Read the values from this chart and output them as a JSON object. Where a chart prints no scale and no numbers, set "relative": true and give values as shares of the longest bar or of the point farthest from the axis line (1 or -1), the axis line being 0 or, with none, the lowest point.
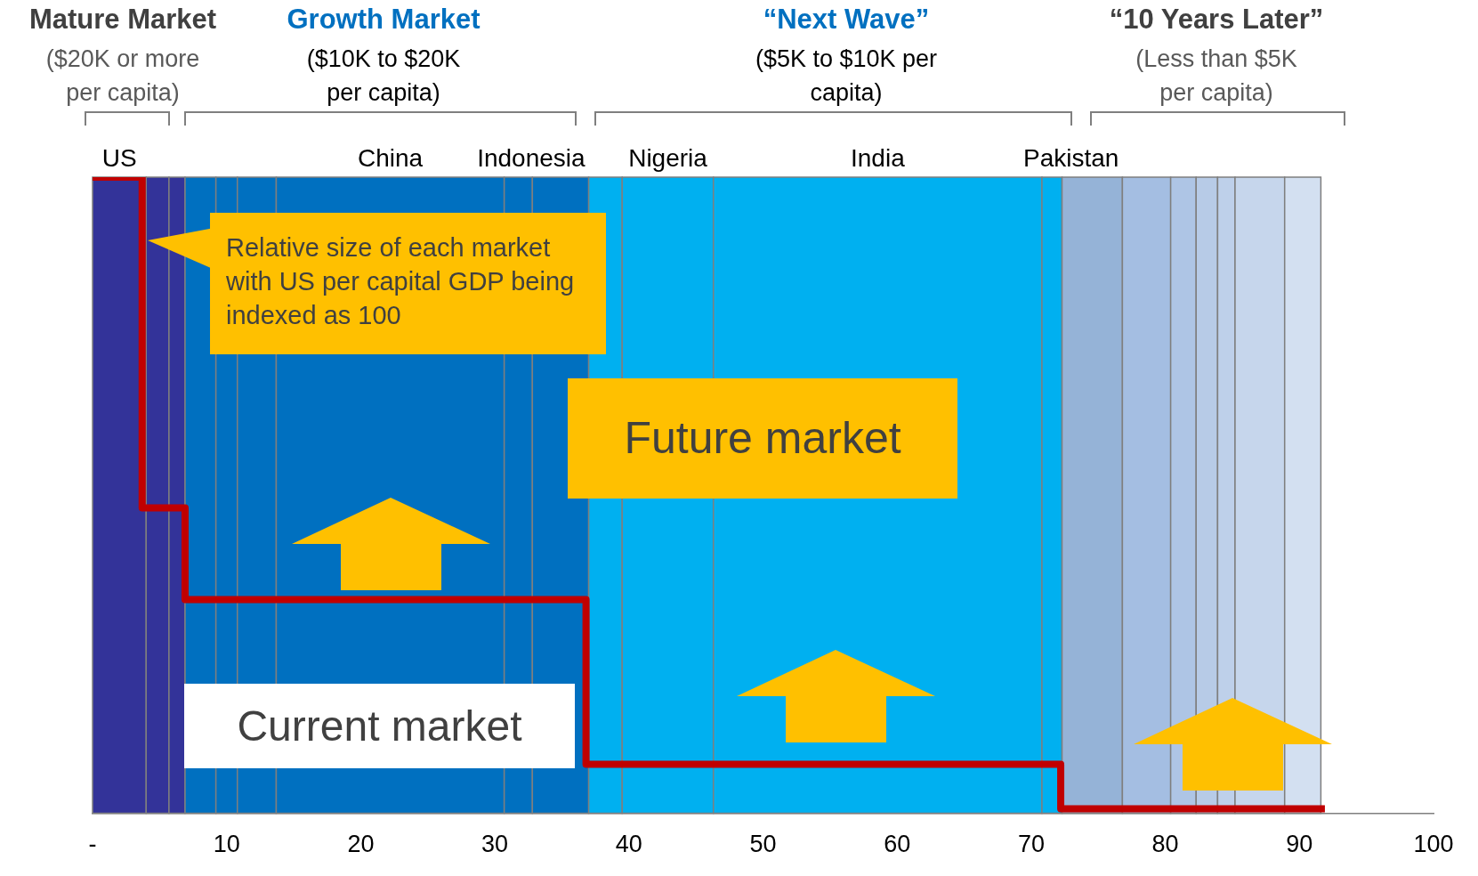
{
  "chart_data": {
    "type": "step",
    "relative": true,
    "series": [
      {
        "color": "#c00000",
        "x": [
          0,
          3.7,
          6.9,
          36.8,
          72.2,
          91.9
        ],
        "values": [
          1,
          0.48,
          0.336,
          0.077,
          0.007,
          0.007
        ]
      }
    ],
    "marker": "none",
    "xlim": [
      0,
      100
    ],
    "xticks": [
      {
        "value": 0,
        "label": "-"
      },
      10,
      20,
      30,
      40,
      50,
      60,
      70,
      80,
      90,
      100
    ],
    "grid": false,
    "legend": false,
    "bands": [
      {
        "axis": "x",
        "from": 0,
        "to": 4.0,
        "color": "#333399",
        "label": "US"
      },
      {
        "axis": "x",
        "from": 4.0,
        "to": 5.7,
        "color": "#333399"
      },
      {
        "axis": "x",
        "from": 5.7,
        "to": 6.9,
        "color": "#333399"
      },
      {
        "axis": "x",
        "from": 6.9,
        "to": 9.2,
        "color": "#0070c0"
      },
      {
        "axis": "x",
        "from": 9.2,
        "to": 10.8,
        "color": "#0070c0"
      },
      {
        "axis": "x",
        "from": 10.8,
        "to": 13.7,
        "color": "#0070c0"
      },
      {
        "axis": "x",
        "from": 13.7,
        "to": 30.7,
        "color": "#0070c0",
        "label": "China"
      },
      {
        "axis": "x",
        "from": 30.7,
        "to": 32.8,
        "color": "#0070c0"
      },
      {
        "axis": "x",
        "from": 32.8,
        "to": 37.0,
        "color": "#0070c0",
        "label": "Indonesia"
      },
      {
        "axis": "x",
        "from": 37.0,
        "to": 39.5,
        "color": "#00b0f0"
      },
      {
        "axis": "x",
        "from": 39.5,
        "to": 46.3,
        "color": "#00b0f0",
        "label": "Nigeria"
      },
      {
        "axis": "x",
        "from": 46.3,
        "to": 70.8,
        "color": "#00b0f0",
        "label": "India"
      },
      {
        "axis": "x",
        "from": 70.8,
        "to": 72.3,
        "color": "#00b0f0"
      },
      {
        "axis": "x",
        "from": 72.3,
        "to": 76.8,
        "color": "#95b3d7",
        "label": "Pakistan"
      },
      {
        "axis": "x",
        "from": 76.8,
        "to": 80.4,
        "color": "#a4bee2"
      },
      {
        "axis": "x",
        "from": 80.4,
        "to": 82.3,
        "color": "#aec5e5"
      },
      {
        "axis": "x",
        "from": 82.3,
        "to": 83.9,
        "color": "#b7cbe7"
      },
      {
        "axis": "x",
        "from": 83.9,
        "to": 85.2,
        "color": "#bed0ea"
      },
      {
        "axis": "x",
        "from": 85.2,
        "to": 88.9,
        "color": "#c6d6ec"
      },
      {
        "axis": "x",
        "from": 88.9,
        "to": 91.6,
        "color": "#d3e0f1"
      }
    ],
    "annotations": [
      "Mature Market",
      "($20K or more per capita)",
      "Growth Market",
      "($10K to $20K per capita)",
      "“Next Wave”",
      "($5K to $10K per capita)",
      "“10 Years Later”",
      "(Less than $5K per capita)",
      "Relative size of each market with US per capital GDP being indexed as 100",
      "Future market",
      "Current market"
    ]
  }
}
